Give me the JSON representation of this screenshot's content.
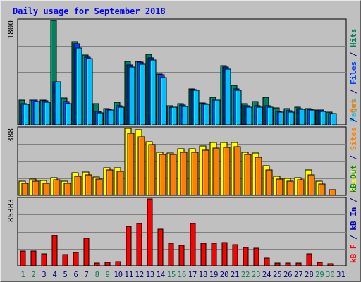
{
  "colors": {
    "background": "#c0c0c0",
    "title": "#0000ff",
    "hits": "#00805c",
    "files": "#0040ff",
    "pages": "#00c0ff",
    "visits": "#ffff00",
    "sites": "#ff8000",
    "kbin": "#0000c0",
    "kbout": "#008040",
    "kbf": "#ff0000",
    "weekday_label": "#000080",
    "weekend_label": "#00805c"
  },
  "chart_data": {
    "type": "bar",
    "title": "Daily usage for September 2018",
    "days": [
      "1",
      "2",
      "3",
      "4",
      "5",
      "6",
      "7",
      "8",
      "9",
      "10",
      "11",
      "12",
      "13",
      "14",
      "15",
      "16",
      "17",
      "18",
      "19",
      "20",
      "21",
      "22",
      "23",
      "24",
      "25",
      "26",
      "27",
      "28",
      "29",
      "30",
      "31"
    ],
    "weekend_days": [
      "1",
      "2",
      "8",
      "9",
      "15",
      "16",
      "22",
      "23",
      "29",
      "30"
    ],
    "panels": [
      {
        "name": "hits-files-pages",
        "ymax_label": "1800",
        "ylim": [
          0,
          1800
        ],
        "legend": [
          {
            "text": "Pages",
            "color": "#00c0ff"
          },
          {
            "text": " / ",
            "color": "#000080"
          },
          {
            "text": "Files",
            "color": "#0040ff"
          },
          {
            "text": " / ",
            "color": "#000080"
          },
          {
            "text": "Hits",
            "color": "#00805c"
          }
        ],
        "series": [
          {
            "name": "Hits",
            "color": "#00805c",
            "values": [
              420,
              420,
              420,
              1800,
              460,
              1430,
              1200,
              360,
              280,
              390,
              1100,
              1100,
              1220,
              870,
              330,
              360,
              620,
              380,
              480,
              1020,
              680,
              360,
              400,
              470,
              290,
              280,
              300,
              280,
              260,
              220,
              0
            ]
          },
          {
            "name": "Files",
            "color": "#0040ff",
            "values": [
              370,
              420,
              410,
              745,
              400,
              1400,
              1170,
              230,
              270,
              330,
              1030,
              1080,
              1150,
              860,
              310,
              340,
              610,
              370,
              430,
              1000,
              620,
              330,
              330,
              330,
              230,
              240,
              280,
              270,
              250,
              200,
              0
            ]
          },
          {
            "name": "Pages",
            "color": "#00c0ff",
            "values": [
              350,
              400,
              390,
              745,
              360,
              1320,
              1140,
              210,
              250,
              300,
              1000,
              1040,
              1120,
              820,
              300,
              320,
              590,
              350,
              420,
              960,
              590,
              310,
              310,
              310,
              220,
              220,
              270,
              260,
              230,
              190,
              0
            ]
          }
        ]
      },
      {
        "name": "visits-sites",
        "ymax_label": "388",
        "ylim": [
          0,
          388
        ],
        "legend": [
          {
            "text": "Visits",
            "color": "#ffff00"
          },
          {
            "text": " / ",
            "color": "#000080"
          },
          {
            "text": "Sites",
            "color": "#ff8000"
          },
          {
            "text": " / ",
            "color": "#000080"
          },
          {
            "text": "Out",
            "color": "#ff8000"
          }
        ],
        "series": [
          {
            "name": "Visits",
            "color": "#ffff00",
            "values": [
              80,
              92,
              85,
              102,
              82,
              130,
              135,
              108,
              160,
              160,
              388,
              378,
              312,
              248,
              244,
              268,
              270,
              285,
              308,
              308,
              308,
              250,
              247,
              170,
              110,
              96,
              102,
              148,
              80,
              0,
              0
            ]
          },
          {
            "name": "Sites",
            "color": "#ff8000",
            "values": [
              70,
              80,
              68,
              90,
              68,
              112,
              120,
              92,
              145,
              140,
              360,
              340,
              295,
              235,
              236,
              250,
              250,
              262,
              272,
              278,
              280,
              236,
              222,
              148,
              94,
              82,
              90,
              118,
              64,
              32,
              0
            ]
          }
        ]
      },
      {
        "name": "kbytes",
        "ymax_label": "85383",
        "ylim": [
          0,
          85383
        ],
        "legend": [
          {
            "text": "kB F",
            "color": "#ff0000"
          },
          {
            "text": " / ",
            "color": "#000080"
          },
          {
            "text": "kB In",
            "color": "#0000c0"
          },
          {
            "text": " / ",
            "color": "#000080"
          },
          {
            "text": "kB Out",
            "color": "#008040"
          }
        ],
        "series": [
          {
            "name": "kB F",
            "color": "#ff0000",
            "values": [
              18500,
              19000,
              15300,
              39000,
              14500,
              16800,
              35000,
              4000,
              4200,
              5800,
              50000,
              53500,
              85383,
              47000,
              29000,
              25900,
              54300,
              28800,
              28800,
              29500,
              27000,
              23000,
              22100,
              10100,
              3500,
              3400,
              3500,
              15000,
              4100,
              2500,
              0
            ]
          }
        ]
      }
    ]
  }
}
